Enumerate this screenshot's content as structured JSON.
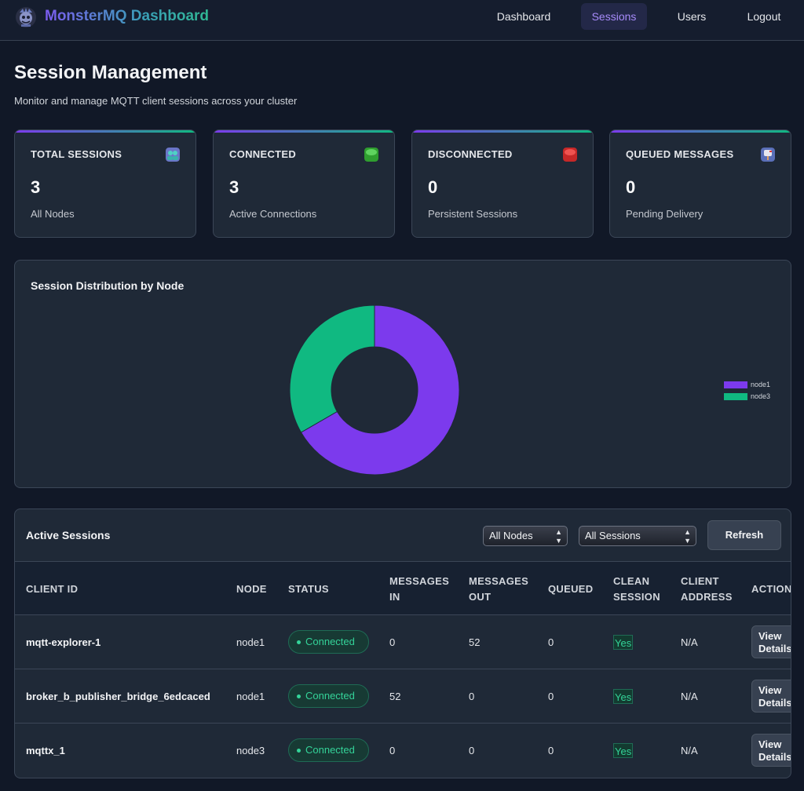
{
  "header": {
    "brand": "MonsterMQ Dashboard",
    "nav": [
      {
        "label": "Dashboard"
      },
      {
        "label": "Sessions",
        "active": true
      },
      {
        "label": "Users"
      },
      {
        "label": "Logout"
      }
    ]
  },
  "page": {
    "title": "Session Management",
    "subtitle": "Monitor and manage MQTT client sessions across your cluster"
  },
  "stats": [
    {
      "label": "TOTAL SESSIONS",
      "value": "3",
      "desc": "All Nodes",
      "icon": "users-icon"
    },
    {
      "label": "CONNECTED",
      "value": "3",
      "desc": "Active Connections",
      "icon": "green-circle-icon"
    },
    {
      "label": "DISCONNECTED",
      "value": "0",
      "desc": "Persistent Sessions",
      "icon": "red-circle-icon"
    },
    {
      "label": "QUEUED MESSAGES",
      "value": "0",
      "desc": "Pending Delivery",
      "icon": "mailbox-icon"
    }
  ],
  "distribution": {
    "title": "Session Distribution by Node"
  },
  "chart_data": {
    "type": "pie",
    "donut": true,
    "title": "Session Distribution by Node",
    "categories": [
      "node1",
      "node3"
    ],
    "values": [
      2,
      1
    ],
    "colors": [
      "#7c3aed",
      "#10b981"
    ],
    "legend_position": "right"
  },
  "sessions": {
    "title": "Active Sessions",
    "node_filter": "All Nodes",
    "session_filter": "All Sessions",
    "refresh_label": "Refresh",
    "columns": {
      "client_id": "CLIENT ID",
      "node": "NODE",
      "status": "STATUS",
      "messages_in": [
        "MESSAGES",
        "IN"
      ],
      "messages_out": [
        "MESSAGES",
        "OUT"
      ],
      "queued": "QUEUED",
      "clean_session": [
        "CLEAN",
        "SESSION"
      ],
      "client_address": [
        "CLIENT",
        "ADDRESS"
      ],
      "actions": "ACTIONS"
    },
    "rows": [
      {
        "client_id": "mqtt-explorer-1",
        "node": "node1",
        "status": "Connected",
        "messages_in": "0",
        "messages_out": "52",
        "queued": "0",
        "clean_session": "Yes",
        "client_address": "N/A",
        "action": [
          "View",
          "Details"
        ]
      },
      {
        "client_id": "broker_b_publisher_bridge_6edcaced",
        "node": "node1",
        "status": "Connected",
        "messages_in": "52",
        "messages_out": "0",
        "queued": "0",
        "clean_session": "Yes",
        "client_address": "N/A",
        "action": [
          "View",
          "Details"
        ]
      },
      {
        "client_id": "mqttx_1",
        "node": "node3",
        "status": "Connected",
        "messages_in": "0",
        "messages_out": "0",
        "queued": "0",
        "clean_session": "Yes",
        "client_address": "N/A",
        "action": [
          "View",
          "Details"
        ]
      }
    ]
  }
}
